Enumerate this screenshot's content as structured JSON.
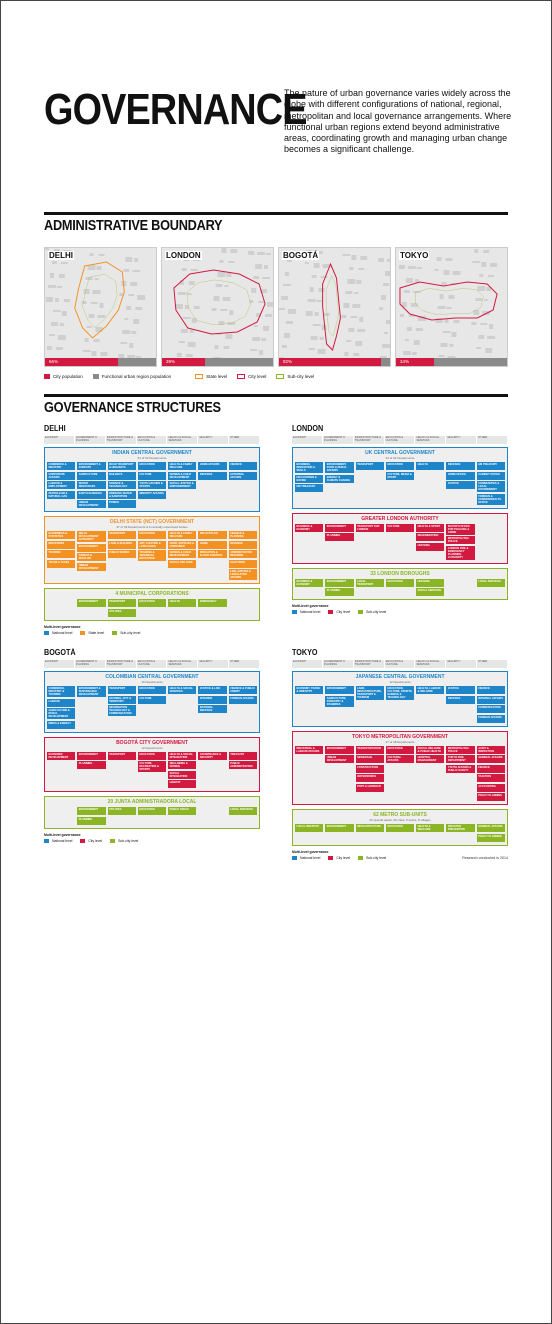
{
  "title": "GOVERNANCE",
  "intro": "The nature of urban governance varies widely across the globe with different configurations of national, regional, metropolitan and local governance arrangements. Where functional urban regions extend beyond administrative areas, coordinating growth and managing urban change becomes a significant challenge.",
  "section_admin": "ADMINISTRATIVE BOUNDARY",
  "section_struct": "GOVERNANCE STRUCTURES",
  "colors": {
    "national": "#1e86c8",
    "state": "#f39223",
    "city": "#d2193f",
    "subcity": "#8cb526",
    "regionbar": "#8a8a8a"
  },
  "maps": [
    {
      "name": "DELHI",
      "percent": 0.66,
      "label": "66%",
      "boundary": "state"
    },
    {
      "name": "LONDON",
      "percent": 0.39,
      "label": "39%",
      "boundary": "city"
    },
    {
      "name": "BOGOTÁ",
      "percent": 0.92,
      "label": "92%",
      "boundary": "city"
    },
    {
      "name": "TOKYO",
      "percent": 0.34,
      "label": "34%",
      "boundary": "city"
    }
  ],
  "map_legend": {
    "city_population": "City population",
    "functional": "Functional urban region population",
    "state_level": "State level",
    "city_level": "City level",
    "subcity_level": "Sub-city level"
  },
  "columns": [
    "ECONOMY",
    "GOVERNMENT & PLANNING",
    "INFRASTRUCTURE & TRANSPORT",
    "EDUCATION & CULTURE",
    "HEALTH & SOCIAL SERVICES",
    "SECURITY",
    "OTHER"
  ],
  "multi_level": "Multi-level governance",
  "levels": {
    "national": "National level",
    "state": "State level",
    "city": "City level",
    "subcity": "Sub-city level"
  },
  "credit": "Research conducted in 2014",
  "panels": [
    {
      "city": "DELHI",
      "legend": [
        "national",
        "state",
        "subcity"
      ],
      "bands": [
        {
          "level": "national",
          "title": "INDIAN CENTRAL GOVERNMENT",
          "sub": "51 of 53 Departments",
          "cols": [
            [
              "COMMERCE & INDUSTRY",
              "CORPORATE AFFAIRS",
              "LABOUR & EMPLOYMENT",
              "PETROLEUM & NATURAL GAS"
            ],
            [
              "ENVIRONMENT & FORESTS",
              "AGRICULTURE",
              "WATER RESOURCES",
              "EARTH SCIENCES",
              "URBAN DEVELOPMENT"
            ],
            [
              "ROAD TRANSPORT & HIGHWAYS",
              "RAILWAYS",
              "SCIENCE & TECHNOLOGY",
              "DRINKING WATER & SANITATION",
              "POWER"
            ],
            [
              "EDUCATION",
              "CULTURE",
              "YOUTH AFFAIRS & SPORTS",
              "MINORITY AFFAIRS"
            ],
            [
              "HEALTH & FAMILY WELFARE",
              "WOMEN & CHILD DEVELOPMENT",
              "SOCIAL JUSTICE & EMPOWERMENT"
            ],
            [
              "HOME AFFAIRS",
              "DEFENCE"
            ],
            [
              "FINANCE",
              "EXTERNAL AFFAIRS"
            ]
          ]
        },
        {
          "level": "state",
          "title": "DELHI STATE (NCT) GOVERNMENT",
          "sub": "37 of 39 Departments & 6 centrally supervised bodies",
          "cols": [
            [
              "ECONOMICS & STATISTICS",
              "INDUSTRIES",
              "TOURISM",
              "TRADE & TAXES"
            ],
            [
              "DELHI DEVELOPMENT AUTHORITY",
              "ENVIRONMENT",
              "FOREST & WILDLIFE",
              "URBAN DEVELOPMENT"
            ],
            [
              "TRANSPORT",
              "LAND & BUILDING",
              "PUBLIC WORKS"
            ],
            [
              "EDUCATION",
              "ART, CULTURE & LANGUAGES",
              "TRAINING & TECHNICAL EDUCATION"
            ],
            [
              "HEALTH & FAMILY WELFARE",
              "FOOD, SUPPLIES & CONSUMER",
              "WOMEN & CHILD DEVELOPMENT",
              "SOCIAL WELFARE"
            ],
            [
              "DELHI POLICE",
              "HOME",
              "IRRIGATION & FLOOD CONTROL"
            ],
            [
              "FINANCE & PLANNING",
              "REVENUE",
              "ADMINISTRATIVE REFORMS",
              "ELECTIONS",
              "LAW, JUSTICE & LEGISLATIVE AFFAIRS"
            ]
          ]
        },
        {
          "level": "subcity",
          "title": "4 MUNICIPAL CORPORATIONS",
          "sub": "",
          "cols": [
            [],
            [
              "ENVIRONMENT"
            ],
            [
              "TRANSPORT",
              "UTILITIES"
            ],
            [
              "EDUCATION"
            ],
            [
              "HEALTH"
            ],
            [
              "EMERGENCY"
            ],
            []
          ]
        }
      ]
    },
    {
      "city": "LONDON",
      "legend": [
        "national",
        "city",
        "subcity"
      ],
      "bands": [
        {
          "level": "national",
          "title": "UK CENTRAL GOVERNMENT",
          "sub": "24 of 24 Departments",
          "cols": [
            [
              "BUSINESS, INNOVATION & SKILLS",
              "HM CUSTOMS & EXCISE",
              "HM TREASURY"
            ],
            [
              "ENVIRONMENT, FOOD & RURAL AFFAIRS",
              "ENERGY & CLIMATE CHANGE"
            ],
            [
              "TRANSPORT"
            ],
            [
              "EDUCATION",
              "CULTURE, MEDIA & SPORT"
            ],
            [
              "HEALTH"
            ],
            [
              "DEFENCE",
              "HOME OFFICE",
              "JUSTICE"
            ],
            [
              "HM TREASURY",
              "CABINET OFFICE",
              "COMMUNITIES & LOCAL GOVERNMENT",
              "FOREIGN & COMMONWEALTH OFFICE"
            ]
          ]
        },
        {
          "level": "city",
          "title": "GREATER LONDON AUTHORITY",
          "sub": "",
          "cols": [
            [
              "BUSINESS & ECONOMY"
            ],
            [
              "ENVIRONMENT",
              "PLANNING"
            ],
            [
              "TRANSPORT FOR LONDON"
            ],
            [
              "CULTURE"
            ],
            [
              "HEALTH & SPORT",
              "REGENERATION",
              "HOUSING"
            ],
            [
              "MAYOR'S OFFICE FOR POLICING & CRIME",
              "METROPOLITAN POLICE",
              "LONDON FIRE & EMERGENCY PLANNING AUTHORITY"
            ],
            []
          ]
        },
        {
          "level": "subcity",
          "title": "33 LONDON BOROUGHS",
          "sub": "",
          "cols": [
            [
              "BUSINESS & ECONOMY"
            ],
            [
              "ENVIRONMENT",
              "PLANNING"
            ],
            [
              "LOCAL TRANSPORT"
            ],
            [
              "EDUCATION"
            ],
            [
              "HOUSING",
              "SOCIAL SERVICES"
            ],
            [],
            [
              "LOCAL SERVICES"
            ]
          ]
        }
      ]
    },
    {
      "city": "BOGOTÁ",
      "legend": [
        "national",
        "city",
        "subcity"
      ],
      "bands": [
        {
          "level": "national",
          "title": "COLOMBIAN CENTRAL GOVERNMENT",
          "sub": "16 Departments",
          "cols": [
            [
              "COMMERCE, INDUSTRY & TOURISM",
              "LABOUR",
              "AGRICULTURE & RURAL DEVELOPMENT",
              "MINES & ENERGY"
            ],
            [
              "ENVIRONMENT & SUSTAINABLE DEVELOPMENT"
            ],
            [
              "TRANSPORT",
              "HOUSING, CITY & TERRITORY",
              "INFORMATION TECHNOLOGY & COMMUNICATION"
            ],
            [
              "EDUCATION",
              "CULTURE"
            ],
            [
              "HEALTH & SOCIAL SERVICES"
            ],
            [
              "JUSTICE & LAW",
              "INTERIOR",
              "NATIONAL DEFENCE"
            ],
            [
              "FINANCE & PUBLIC CREDIT",
              "FOREIGN AFFAIRS"
            ]
          ]
        },
        {
          "level": "city",
          "title": "BOGOTÁ CITY GOVERNMENT",
          "sub": "12 Departments",
          "cols": [
            [
              "ECONOMIC DEVELOPMENT"
            ],
            [
              "ENVIRONMENT",
              "PLANNING"
            ],
            [
              "TRANSPORT"
            ],
            [
              "EDUCATION",
              "CULTURE, RECREATION & SPORTS"
            ],
            [
              "HEALTH & SOCIAL INTEGRATION",
              "WELLBEING & WOMEN",
              "SOCIAL INTEGRATION",
              "HABITAT"
            ],
            [
              "GOVERNANCE & SECURITY"
            ],
            [
              "TREASURY",
              "PUBLIC ADMINISTRATION"
            ]
          ]
        },
        {
          "level": "subcity",
          "title": "20 JUNTA ADMINISTRADORA LOCAL",
          "sub": "",
          "cols": [
            [],
            [
              "ENVIRONMENT",
              "PLANNING"
            ],
            [
              "UTILITIES"
            ],
            [
              "EDUCATION"
            ],
            [
              "PUBLIC SPACE"
            ],
            [],
            [
              "LOCAL SERVICES"
            ]
          ]
        }
      ]
    },
    {
      "city": "TOKYO",
      "legend": [
        "national",
        "city",
        "subcity"
      ],
      "bands": [
        {
          "level": "national",
          "title": "JAPANESE CENTRAL GOVERNMENT",
          "sub": "12 Departments",
          "cols": [
            [
              "ECONOMY, TRADE & INDUSTRY"
            ],
            [
              "ENVIRONMENT",
              "AGRICULTURE, FORESTRY & FISHERIES"
            ],
            [
              "LAND, INFRASTRUCTURE, TRANSPORT & TOURISM"
            ],
            [
              "EDUCATION, CULTURE, SPORTS, SCIENCE & TECHNOLOGY"
            ],
            [
              "HEALTH, LABOUR & WELFARE"
            ],
            [
              "JUSTICE",
              "DEFENCE"
            ],
            [
              "FINANCE",
              "INTERNAL AFFAIRS",
              "COMMUNICATION",
              "FOREIGN AFFAIRS"
            ]
          ]
        },
        {
          "level": "city",
          "title": "TOKYO METROPOLITAN GOVERNMENT",
          "sub": "27 of 28 Departments",
          "cols": [
            [
              "INDUSTRIAL & LABOUR AFFAIRS"
            ],
            [
              "ENVIRONMENT",
              "URBAN DEVELOPMENT"
            ],
            [
              "TRANSPORTATION",
              "SEWERAGE",
              "CONSTRUCTION",
              "WATERWORKS",
              "PORT & HARBOUR"
            ],
            [
              "EDUCATION",
              "CULTURAL AFFAIRS"
            ],
            [
              "SOCIAL WELFARE & PUBLIC HEALTH",
              "HOSPITAL MANAGEMENT"
            ],
            [
              "METROPOLITAN POLICE",
              "TOKYO FIRE DEPARTMENT",
              "YOUTH AFFAIRS & PUBLIC SAFETY"
            ],
            [
              "AUDIT & INSPECTION",
              "GENERAL AFFAIRS",
              "FINANCE",
              "TAXATION",
              "ACCOUNTING",
              "POLICY PLANNING"
            ]
          ]
        },
        {
          "level": "subcity",
          "title": "62 METRO SUB-UNITS",
          "sub": "23 special wards, 26 cities, 5 towns, 8 villages",
          "cols": [
            [
              "LOCAL INDUSTRY"
            ],
            [
              "ENVIRONMENT"
            ],
            [
              "INFRASTRUCTURE"
            ],
            [
              "EDUCATION"
            ],
            [
              "HEALTH & WELFARE"
            ],
            [
              "DISASTER PREVENTION"
            ],
            [
              "GENERAL AFFAIRS",
              "POLICY PLANNING"
            ]
          ]
        }
      ]
    }
  ]
}
